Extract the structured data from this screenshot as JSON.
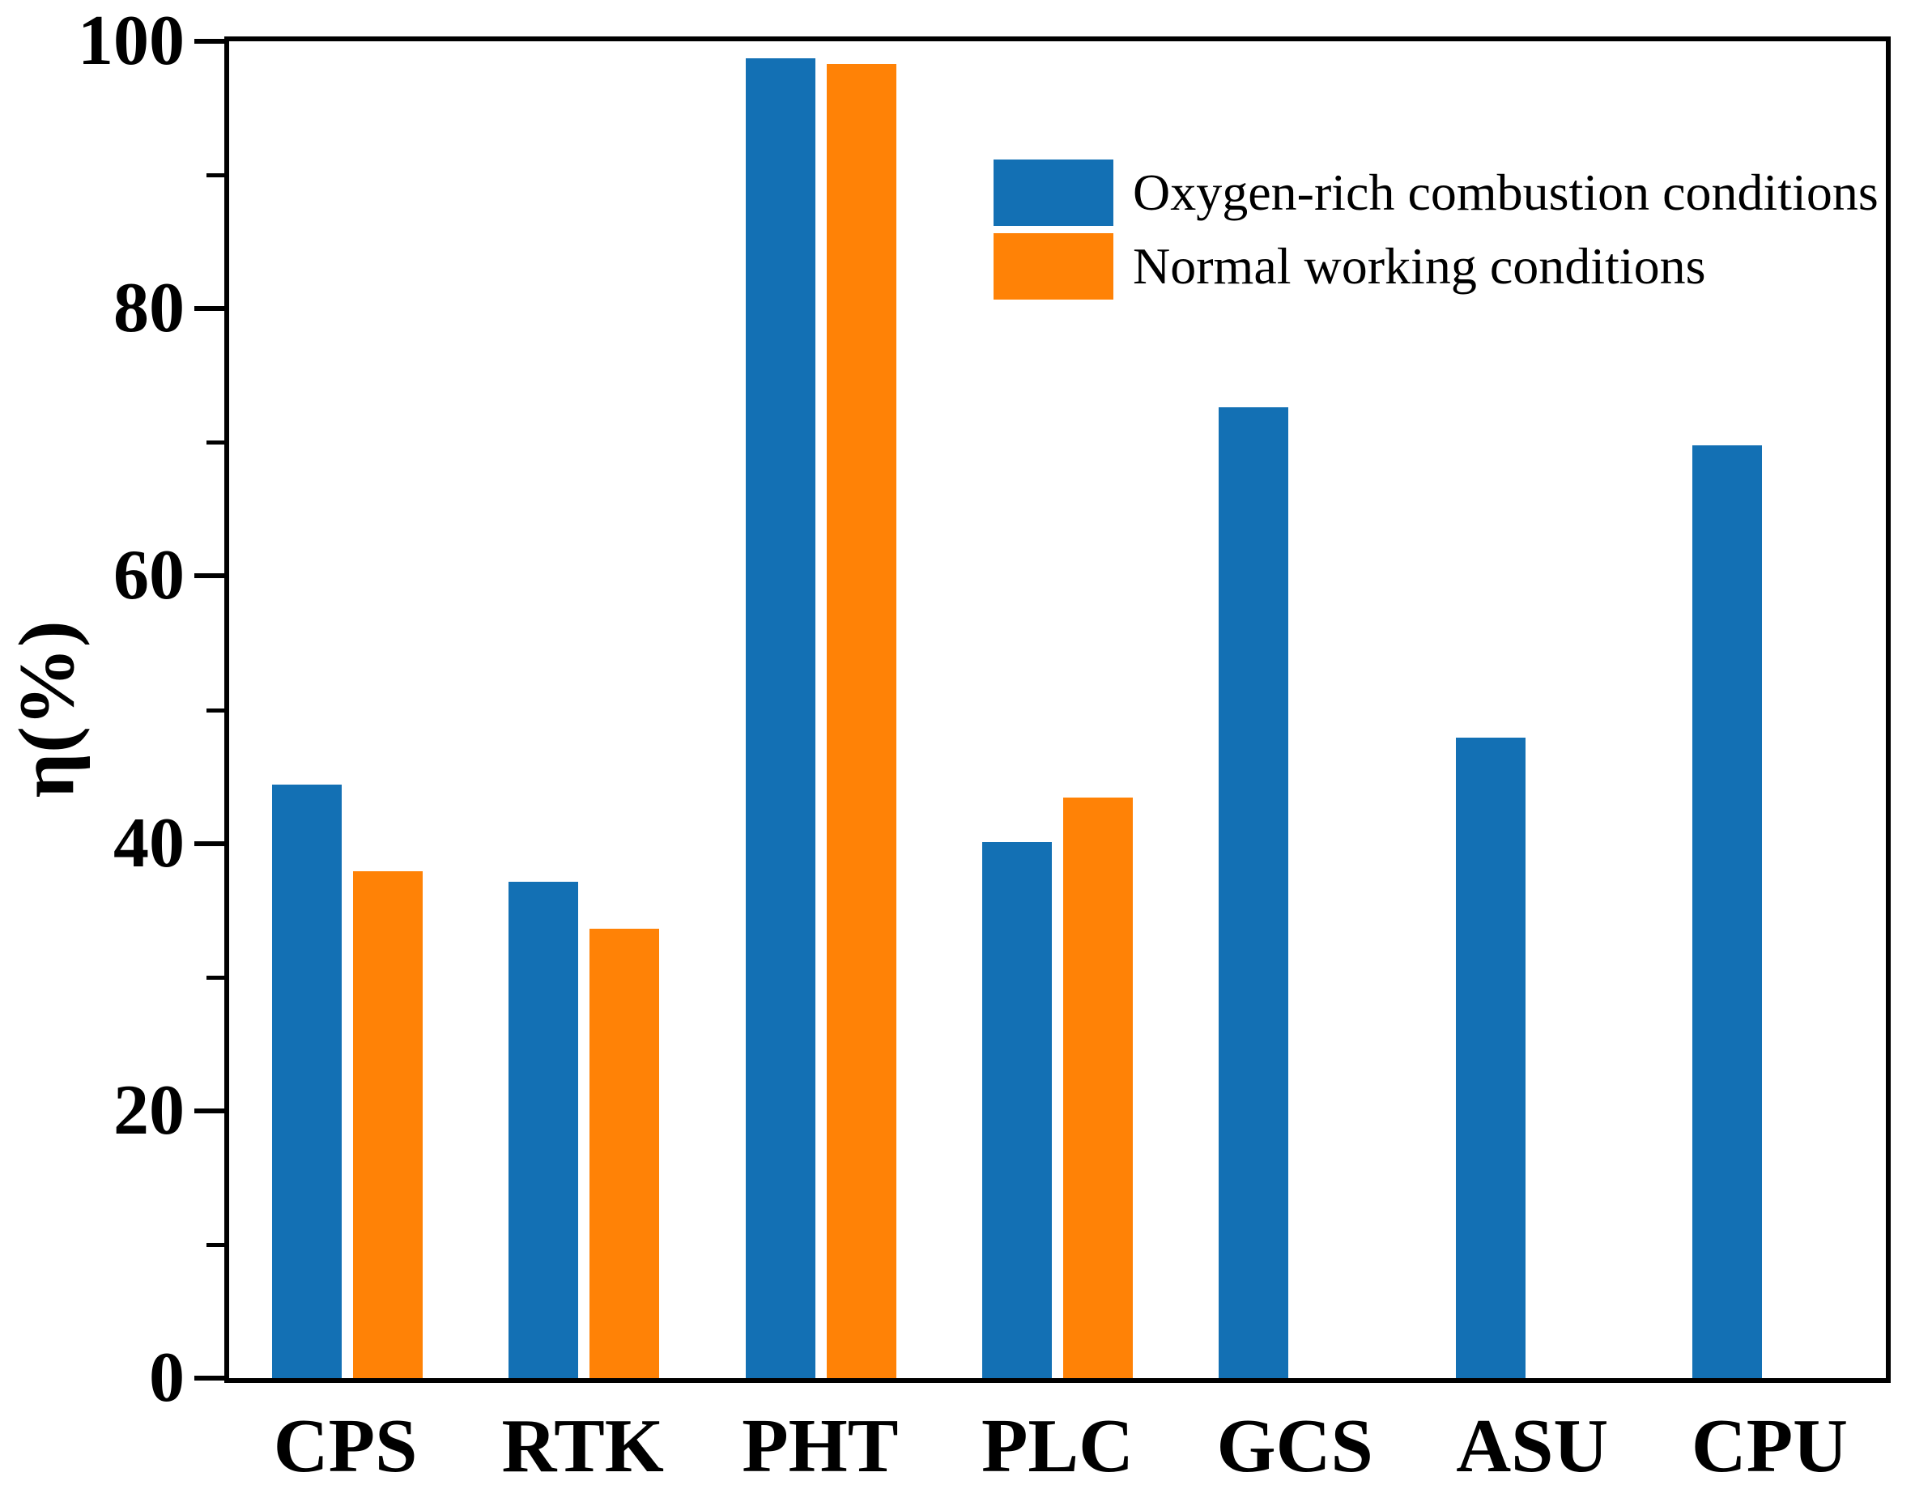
{
  "figure": {
    "background_color": "#ffffff",
    "text_color": "#000000"
  },
  "chart_data": {
    "type": "bar",
    "title": "",
    "xlabel": "",
    "ylabel": "η(%)",
    "ylim": [
      0,
      100
    ],
    "y_major_ticks": [
      0,
      20,
      40,
      60,
      80,
      100
    ],
    "y_minor_ticks": [
      10,
      30,
      50,
      70,
      90
    ],
    "grid": false,
    "legend_position": "upper-right-inside",
    "categories": [
      "CPS",
      "RTK",
      "PHT",
      "PLC",
      "GCS",
      "ASU",
      "CPU"
    ],
    "series": [
      {
        "name": "Oxygen-rich combustion conditions",
        "color": "#1370b4",
        "values": [
          44.4,
          37.1,
          98.7,
          40.1,
          72.6,
          47.9,
          69.8
        ]
      },
      {
        "name": "Normal working conditions",
        "color": "#ff8206",
        "values": [
          37.9,
          33.6,
          98.3,
          43.4,
          null,
          null,
          null
        ]
      }
    ]
  }
}
